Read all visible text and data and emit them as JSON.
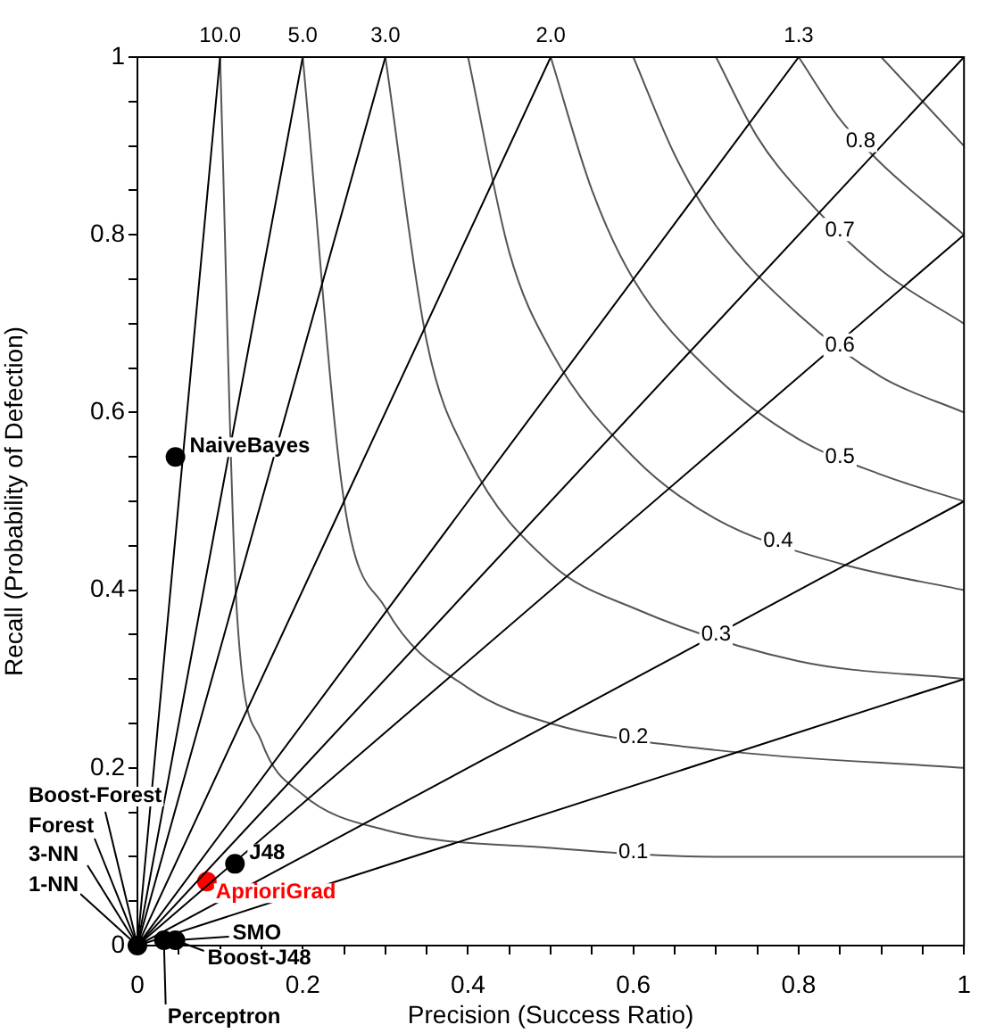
{
  "chart_data": {
    "type": "scatter",
    "xlabel": "Precision (Success Ratio)",
    "ylabel": "Recall (Probability of Defection)",
    "xlim": [
      0,
      1
    ],
    "ylim": [
      0,
      1
    ],
    "xticks": [
      0,
      {
        "value": 0.05,
        "label": null
      },
      {
        "value": 0.1,
        "label": null
      },
      {
        "value": 0.15,
        "label": null
      },
      0.2,
      {
        "value": 0.25,
        "label": null
      },
      {
        "value": 0.3,
        "label": null
      },
      {
        "value": 0.35,
        "label": null
      },
      0.4,
      {
        "value": 0.45,
        "label": null
      },
      {
        "value": 0.5,
        "label": null
      },
      {
        "value": 0.55,
        "label": null
      },
      0.6,
      {
        "value": 0.65,
        "label": null
      },
      {
        "value": 0.7,
        "label": null
      },
      {
        "value": 0.75,
        "label": null
      },
      0.8,
      {
        "value": 0.85,
        "label": null
      },
      {
        "value": 0.9,
        "label": null
      },
      {
        "value": 0.95,
        "label": null
      },
      1
    ],
    "yticks": [
      0,
      {
        "value": 0.05,
        "label": null
      },
      {
        "value": 0.1,
        "label": null
      },
      {
        "value": 0.15,
        "label": null
      },
      0.2,
      {
        "value": 0.25,
        "label": null
      },
      {
        "value": 0.3,
        "label": null
      },
      {
        "value": 0.35,
        "label": null
      },
      0.4,
      {
        "value": 0.45,
        "label": null
      },
      {
        "value": 0.5,
        "label": null
      },
      {
        "value": 0.55,
        "label": null
      },
      0.6,
      {
        "value": 0.65,
        "label": null
      },
      {
        "value": 0.7,
        "label": null
      },
      {
        "value": 0.75,
        "label": null
      },
      0.8,
      {
        "value": 0.85,
        "label": null
      },
      {
        "value": 0.9,
        "label": null
      },
      {
        "value": 0.95,
        "label": null
      },
      1
    ],
    "grid": false,
    "legend": false,
    "marker": "circle",
    "series": [
      {
        "type": "line",
        "marker": "none",
        "name": "10.0",
        "color": "#000000",
        "x": [
          0,
          0.1
        ],
        "values": [
          0,
          1
        ]
      },
      {
        "type": "line",
        "marker": "none",
        "name": "5.0",
        "color": "#000000",
        "x": [
          0,
          0.2
        ],
        "values": [
          0,
          1
        ]
      },
      {
        "type": "line",
        "marker": "none",
        "name": "3.0",
        "color": "#000000",
        "x": [
          0,
          0.3
        ],
        "values": [
          0,
          1
        ]
      },
      {
        "type": "line",
        "marker": "none",
        "name": "2.0",
        "color": "#000000",
        "x": [
          0,
          0.5
        ],
        "values": [
          0,
          1
        ]
      },
      {
        "type": "line",
        "marker": "none",
        "name": "1.3",
        "color": "#000000",
        "x": [
          0,
          0.8
        ],
        "values": [
          0,
          1
        ]
      },
      {
        "type": "line",
        "marker": "none",
        "color": "#000000",
        "x": [
          0,
          1
        ],
        "values": [
          0,
          1
        ]
      },
      {
        "type": "line",
        "marker": "none",
        "color": "#000000",
        "x": [
          0,
          1
        ],
        "values": [
          0,
          0.8
        ]
      },
      {
        "type": "line",
        "marker": "none",
        "color": "#000000",
        "x": [
          0,
          1
        ],
        "values": [
          0,
          0.5
        ]
      },
      {
        "type": "line",
        "marker": "none",
        "color": "#000000",
        "x": [
          0,
          1
        ],
        "values": [
          0,
          0.3
        ]
      },
      {
        "type": "line",
        "marker": "none",
        "name": "0.1",
        "color": "#555555",
        "x": [
          0.1,
          0.12,
          0.15,
          0.2,
          0.3,
          0.5,
          0.7,
          1
        ],
        "values": [
          1,
          0.38,
          0.23,
          0.17,
          0.13,
          0.11,
          0.1,
          0.1
        ]
      },
      {
        "type": "line",
        "marker": "none",
        "name": "0.2",
        "color": "#555555",
        "x": [
          0.2,
          0.25,
          0.3,
          0.4,
          0.5,
          0.7,
          1
        ],
        "values": [
          1,
          0.5,
          0.38,
          0.29,
          0.25,
          0.22,
          0.2
        ]
      },
      {
        "type": "line",
        "marker": "none",
        "name": "0.3",
        "color": "#555555",
        "x": [
          0.3,
          0.35,
          0.4,
          0.5,
          0.6,
          0.8,
          1
        ],
        "values": [
          1,
          0.68,
          0.55,
          0.43,
          0.38,
          0.32,
          0.3
        ]
      },
      {
        "type": "line",
        "marker": "none",
        "name": "0.4",
        "color": "#555555",
        "x": [
          0.4,
          0.45,
          0.5,
          0.6,
          0.7,
          0.85,
          1
        ],
        "values": [
          1,
          0.78,
          0.67,
          0.55,
          0.48,
          0.43,
          0.4
        ]
      },
      {
        "type": "line",
        "marker": "none",
        "name": "0.5",
        "color": "#555555",
        "x": [
          0.5,
          0.55,
          0.6,
          0.7,
          0.8,
          0.9,
          1
        ],
        "values": [
          1,
          0.85,
          0.75,
          0.64,
          0.57,
          0.53,
          0.5
        ]
      },
      {
        "type": "line",
        "marker": "none",
        "name": "0.6",
        "color": "#555555",
        "x": [
          0.6,
          0.65,
          0.7,
          0.8,
          0.9,
          1
        ],
        "values": [
          1,
          0.89,
          0.81,
          0.71,
          0.64,
          0.6
        ]
      },
      {
        "type": "line",
        "marker": "none",
        "name": "0.7",
        "color": "#555555",
        "x": [
          0.7,
          0.75,
          0.8,
          0.9,
          1
        ],
        "values": [
          1,
          0.91,
          0.85,
          0.76,
          0.7
        ]
      },
      {
        "type": "line",
        "marker": "none",
        "name": "0.8",
        "color": "#555555",
        "x": [
          0.8,
          0.85,
          0.9,
          1
        ],
        "values": [
          1,
          0.93,
          0.88,
          0.8
        ]
      },
      {
        "type": "line",
        "marker": "none",
        "color": "#555555",
        "x": [
          0.9,
          0.95,
          1
        ],
        "values": [
          1,
          0.95,
          0.9
        ]
      },
      {
        "color": "#000000",
        "x": [
          0.046,
          0.118,
          0.046,
          0.032,
          0
        ],
        "values": [
          0.55,
          0.092,
          0.006,
          0.006,
          0
        ]
      },
      {
        "color": "#ff0000",
        "x": [
          0.084
        ],
        "values": [
          0.072
        ]
      }
    ],
    "annotations": [
      {
        "text": "NaiveBayes",
        "x": 0.046,
        "y": 0.55
      },
      {
        "text": "J48",
        "x": 0.118,
        "y": 0.092
      },
      {
        "text": "AprioriGrad",
        "x": 0.084,
        "y": 0.072
      },
      {
        "text": "SMO",
        "x": 0.046,
        "y": 0.006
      },
      {
        "text": "Boost-J48",
        "x": 0.046,
        "y": 0.006
      },
      {
        "text": "Perceptron",
        "x": 0.032,
        "y": 0.006
      },
      {
        "text": "Boost-Forest",
        "x": 0,
        "y": 0
      },
      {
        "text": "Forest",
        "x": 0,
        "y": 0
      },
      {
        "text": "3-NN",
        "x": 0,
        "y": 0
      },
      {
        "text": "1-NN",
        "x": 0,
        "y": 0
      }
    ]
  }
}
